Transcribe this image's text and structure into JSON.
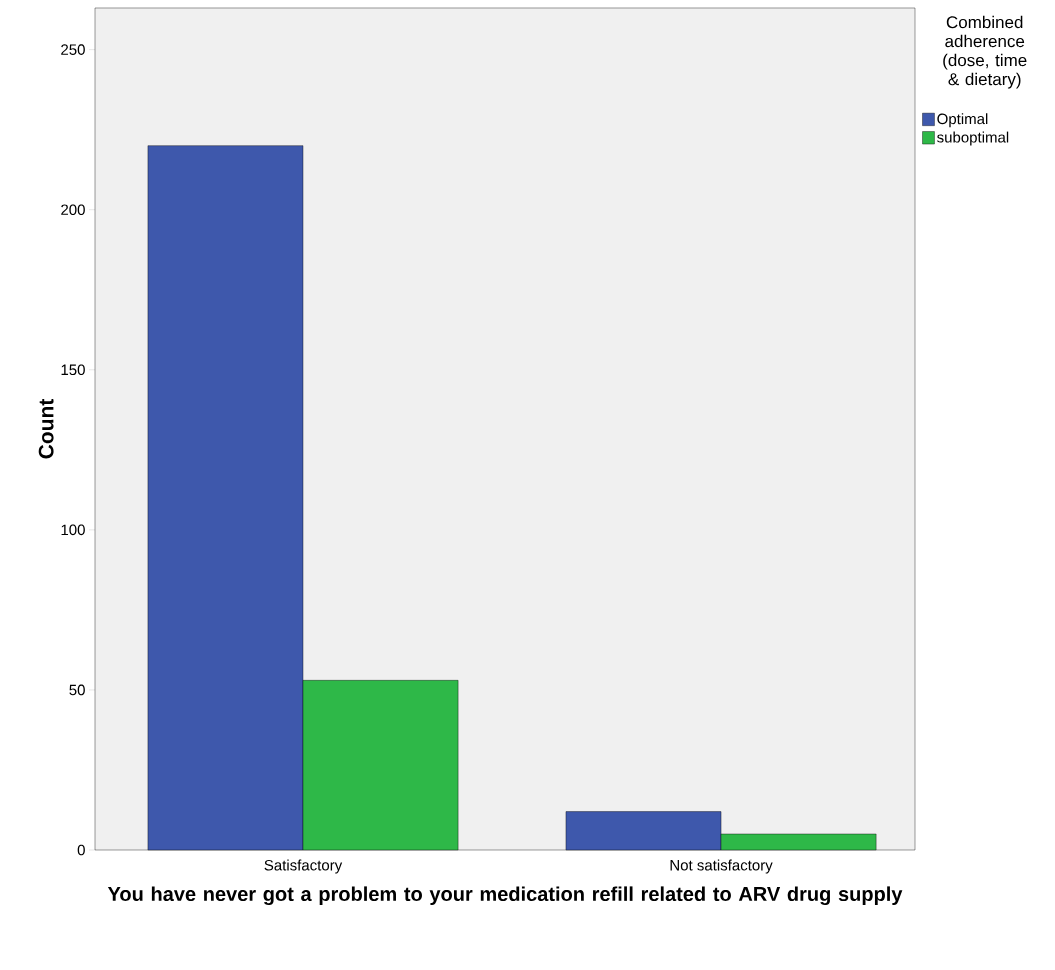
{
  "chart_data": {
    "type": "bar",
    "xlabel": "You have never got a problem to your medication refill related to ARV drug supply",
    "ylabel": "Count",
    "legend_title": "Combined adherence (dose, time & dietary)",
    "categories": [
      "Satisfactory",
      "Not satisfactory"
    ],
    "series": [
      {
        "name": "Optimal",
        "color": "#3e58ac",
        "values": [
          220,
          12
        ]
      },
      {
        "name": "suboptimal",
        "color": "#2eb848",
        "values": [
          53,
          5
        ]
      }
    ],
    "ylim": [
      0,
      263
    ],
    "yticks": [
      0,
      50,
      100,
      150,
      200,
      250
    ],
    "legend": "right"
  }
}
